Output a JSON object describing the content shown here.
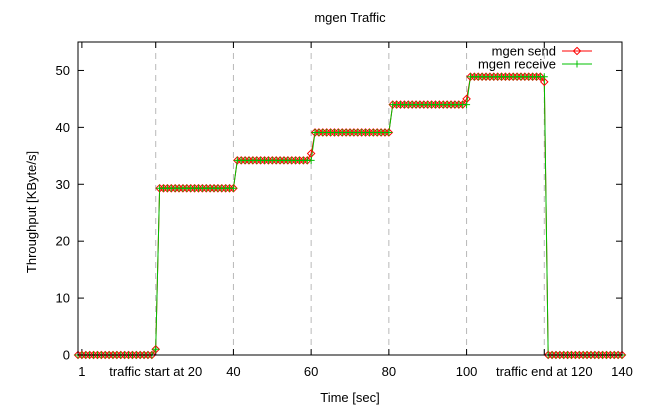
{
  "chart_data": {
    "type": "line",
    "title": "mgen Traffic",
    "xlabel": "Time [sec]",
    "ylabel": "Throughput [KByte/s]",
    "xlim": [
      0,
      140
    ],
    "ylim": [
      0,
      55
    ],
    "x_ticks": [
      {
        "value": 1,
        "label": "1"
      },
      {
        "value": 20,
        "label": "traffic start at 20"
      },
      {
        "value": 40,
        "label": "40"
      },
      {
        "value": 60,
        "label": "60"
      },
      {
        "value": 80,
        "label": "80"
      },
      {
        "value": 100,
        "label": "100"
      },
      {
        "value": 120,
        "label": "traffic end at 120"
      },
      {
        "value": 140,
        "label": "140"
      }
    ],
    "x_grid_lines": [
      20,
      40,
      60,
      80,
      100,
      120
    ],
    "y_ticks": [
      0,
      10,
      20,
      30,
      40,
      50
    ],
    "legend_position": "top-right",
    "series": [
      {
        "name": "mgen send",
        "color": "#ff0000",
        "marker": "diamond",
        "segments": [
          {
            "x_start": 0,
            "x_end": 19,
            "y": 0
          },
          {
            "x_start": 20,
            "x_end": 20,
            "y": 1
          },
          {
            "x_start": 21,
            "x_end": 40,
            "y": 29.3
          },
          {
            "x_start": 41,
            "x_end": 59,
            "y": 34.2
          },
          {
            "x_start": 60,
            "x_end": 60,
            "y": 35.4
          },
          {
            "x_start": 61,
            "x_end": 80,
            "y": 39.1
          },
          {
            "x_start": 81,
            "x_end": 99,
            "y": 44
          },
          {
            "x_start": 100,
            "x_end": 100,
            "y": 45
          },
          {
            "x_start": 101,
            "x_end": 119,
            "y": 48.9
          },
          {
            "x_start": 120,
            "x_end": 120,
            "y": 48
          },
          {
            "x_start": 121,
            "x_end": 140,
            "y": 0
          }
        ]
      },
      {
        "name": "mgen receive",
        "color": "#00c000",
        "marker": "plus",
        "segments": [
          {
            "x_start": 0,
            "x_end": 19,
            "y": 0
          },
          {
            "x_start": 20,
            "x_end": 20,
            "y": 1
          },
          {
            "x_start": 21,
            "x_end": 40,
            "y": 29.3
          },
          {
            "x_start": 41,
            "x_end": 60,
            "y": 34.2
          },
          {
            "x_start": 61,
            "x_end": 80,
            "y": 39.1
          },
          {
            "x_start": 81,
            "x_end": 100,
            "y": 44
          },
          {
            "x_start": 101,
            "x_end": 119,
            "y": 48.9
          },
          {
            "x_start": 120,
            "x_end": 120,
            "y": 48.9
          },
          {
            "x_start": 121,
            "x_end": 140,
            "y": 0
          }
        ]
      }
    ]
  }
}
